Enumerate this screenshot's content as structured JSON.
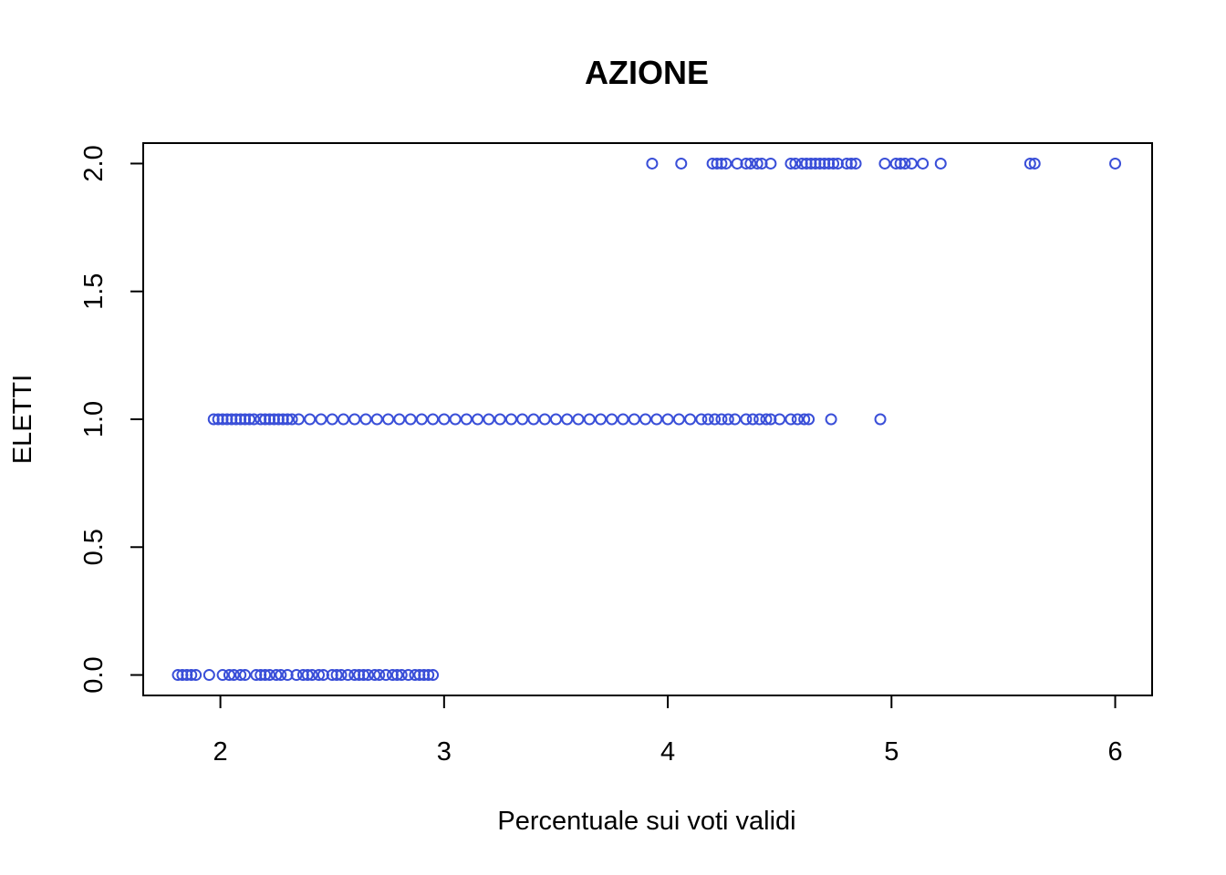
{
  "chart_data": {
    "type": "scatter",
    "title": "AZIONE",
    "xlabel": "Percentuale sui voti validi",
    "ylabel": "ELETTI",
    "xlim": [
      1.655,
      6.165
    ],
    "ylim": [
      -0.08,
      2.08
    ],
    "xticks": [
      2,
      3,
      4,
      5,
      6
    ],
    "yticks": [
      0.0,
      0.5,
      1.0,
      1.5,
      2.0
    ],
    "xtick_labels": [
      "2",
      "3",
      "4",
      "5",
      "6"
    ],
    "ytick_labels": [
      "0.0",
      "0.5",
      "1.0",
      "1.5",
      "2.0"
    ],
    "grid": false,
    "legend": "none",
    "marker": "open-circle",
    "point_color": "#3a4fd8",
    "series": [
      {
        "y": 0,
        "x": [
          1.81,
          1.83,
          1.85,
          1.87,
          1.89,
          1.95,
          2.01,
          2.04,
          2.06,
          2.09,
          2.11,
          2.16,
          2.18,
          2.2,
          2.22,
          2.25,
          2.27,
          2.3,
          2.34,
          2.37,
          2.39,
          2.41,
          2.44,
          2.46,
          2.5,
          2.52,
          2.54,
          2.57,
          2.6,
          2.62,
          2.64,
          2.66,
          2.69,
          2.71,
          2.74,
          2.77,
          2.79,
          2.81,
          2.84,
          2.87,
          2.89,
          2.91,
          2.93,
          2.95
        ]
      },
      {
        "y": 1,
        "x": [
          1.97,
          1.99,
          2.01,
          2.03,
          2.05,
          2.07,
          2.09,
          2.11,
          2.13,
          2.15,
          2.18,
          2.2,
          2.22,
          2.24,
          2.26,
          2.28,
          2.3,
          2.32,
          2.35,
          2.4,
          2.45,
          2.5,
          2.55,
          2.6,
          2.65,
          2.7,
          2.75,
          2.8,
          2.85,
          2.9,
          2.95,
          3.0,
          3.05,
          3.1,
          3.15,
          3.2,
          3.25,
          3.3,
          3.35,
          3.4,
          3.45,
          3.5,
          3.55,
          3.6,
          3.65,
          3.7,
          3.75,
          3.8,
          3.85,
          3.9,
          3.95,
          4.0,
          4.05,
          4.1,
          4.15,
          4.18,
          4.21,
          4.24,
          4.27,
          4.3,
          4.35,
          4.38,
          4.41,
          4.44,
          4.46,
          4.5,
          4.55,
          4.58,
          4.61,
          4.63,
          4.73,
          4.95
        ]
      },
      {
        "y": 2,
        "x": [
          3.93,
          4.06,
          4.2,
          4.22,
          4.24,
          4.26,
          4.31,
          4.35,
          4.37,
          4.4,
          4.42,
          4.46,
          4.55,
          4.57,
          4.6,
          4.62,
          4.64,
          4.66,
          4.68,
          4.7,
          4.72,
          4.74,
          4.76,
          4.8,
          4.82,
          4.84,
          4.97,
          5.02,
          5.04,
          5.06,
          5.09,
          5.14,
          5.22,
          5.62,
          5.64,
          6.0
        ]
      }
    ]
  }
}
